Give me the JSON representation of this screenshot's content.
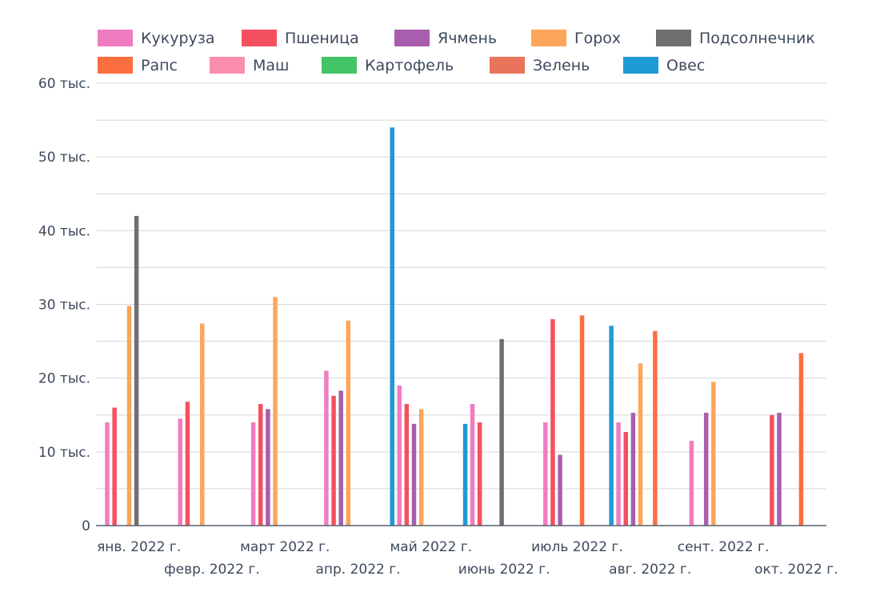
{
  "chart_data": {
    "type": "bar",
    "title": "",
    "xlabel": "",
    "ylabel": "",
    "ylim": [
      0,
      60000
    ],
    "yticks": [
      0,
      10000,
      20000,
      30000,
      40000,
      50000,
      60000
    ],
    "ytick_labels": [
      "0",
      "10 тыс.",
      "20 тыс.",
      "30 тыс.",
      "40 тыс.",
      "50 тыс.",
      "60 тыс."
    ],
    "grid": true,
    "legend_position": "top",
    "categories": [
      "янв. 2022 г.",
      "февр. 2022 г.",
      "март 2022 г.",
      "апр. 2022 г.",
      "май 2022 г.",
      "июнь 2022 г.",
      "июль 2022 г.",
      "авг. 2022 г.",
      "сент. 2022 г.",
      "окт. 2022 г."
    ],
    "series": [
      {
        "name": "Кукуруза",
        "color": "#f07cc0",
        "values": [
          14000,
          14500,
          14000,
          21000,
          19000,
          16500,
          14000,
          14000,
          11500,
          null
        ]
      },
      {
        "name": "Пшеница",
        "color": "#f5505f",
        "values": [
          16000,
          16800,
          16500,
          17600,
          16500,
          14000,
          28000,
          12700,
          null,
          15000
        ]
      },
      {
        "name": "Ячмень",
        "color": "#a85ead",
        "values": [
          null,
          null,
          15800,
          18300,
          13800,
          null,
          9600,
          15300,
          15300,
          15300
        ]
      },
      {
        "name": "Горох",
        "color": "#fda55a",
        "values": [
          29800,
          27400,
          31000,
          27800,
          15800,
          null,
          null,
          22000,
          19500,
          null
        ]
      },
      {
        "name": "Подсолнечник",
        "color": "#6f6f6f",
        "values": [
          42000,
          null,
          null,
          null,
          null,
          25300,
          null,
          null,
          null,
          null
        ]
      },
      {
        "name": "Рапс",
        "color": "#fb6e3f",
        "values": [
          null,
          null,
          null,
          null,
          null,
          null,
          28500,
          26400,
          null,
          23400
        ]
      },
      {
        "name": "Маш",
        "color": "#fb8eae",
        "values": [
          null,
          null,
          null,
          null,
          null,
          null,
          null,
          null,
          null,
          null
        ]
      },
      {
        "name": "Картофель",
        "color": "#43c466",
        "values": [
          null,
          null,
          null,
          null,
          null,
          null,
          null,
          null,
          null,
          null
        ]
      },
      {
        "name": "Зелень",
        "color": "#ea735c",
        "values": [
          null,
          null,
          null,
          null,
          null,
          null,
          null,
          null,
          null,
          null
        ]
      },
      {
        "name": "Овес",
        "color": "#1e9ad6",
        "values": [
          null,
          null,
          null,
          54000,
          13800,
          null,
          27100,
          null,
          null,
          null
        ]
      }
    ]
  }
}
